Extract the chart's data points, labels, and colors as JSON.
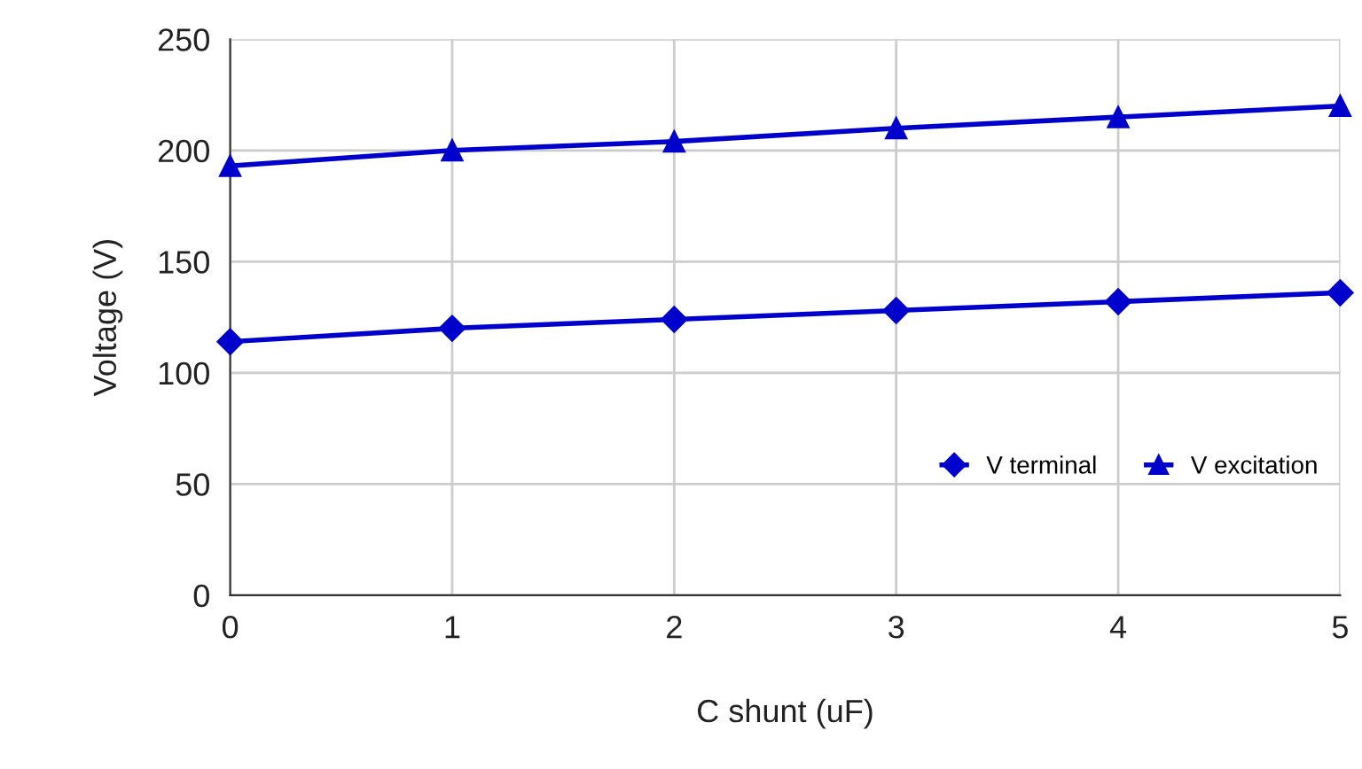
{
  "chart_data": {
    "type": "line",
    "xlabel": "C shunt (uF)",
    "ylabel": "Voltage (V)",
    "x": [
      0,
      1,
      2,
      3,
      4,
      5
    ],
    "series": [
      {
        "name": "V terminal",
        "color": "#0000cc",
        "marker": "diamond",
        "values": [
          114,
          120,
          124,
          128,
          132,
          136
        ]
      },
      {
        "name": "V excitation",
        "color": "#0000cc",
        "marker": "triangle",
        "values": [
          193,
          200,
          204,
          210,
          215,
          220
        ]
      }
    ],
    "xlim": [
      0,
      5
    ],
    "xticks": [
      0,
      1,
      2,
      3,
      4,
      5
    ],
    "ylim": [
      0,
      250
    ],
    "yticks": [
      0,
      50,
      100,
      150,
      200,
      250
    ],
    "grid": true,
    "legend": "bottom right",
    "line_style": "solid"
  }
}
